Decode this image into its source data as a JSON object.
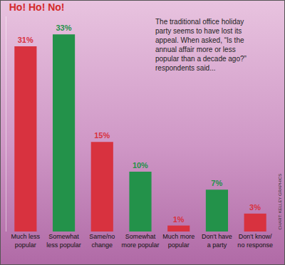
{
  "chart_data": {
    "type": "bar",
    "title": "Ho! Ho! No!",
    "subtitle": "The traditional office holiday party seems to have lost its appeal. When asked, “Is the annual affair more or less popular than a decade ago?” respondents said...",
    "annotations": [
      "CHART: KELLEY GRAPHICS"
    ],
    "categories": [
      "Much less popular",
      "Somewhat less popular",
      "Same/no change",
      "Somewhat more popular",
      "Much more popular",
      "Don't have a party",
      "Don't know/ no response"
    ],
    "values": [
      31,
      33,
      15,
      10,
      1,
      7,
      3
    ],
    "value_labels": [
      "31%",
      "33%",
      "15%",
      "10%",
      "1%",
      "7%",
      "3%"
    ],
    "colors": [
      "#d8323f",
      "#23924a",
      "#d8323f",
      "#23924a",
      "#d8323f",
      "#23924a",
      "#d8323f"
    ],
    "ylim": [
      0,
      36
    ],
    "grid": false,
    "data_labels": true,
    "tick_labels": "x"
  }
}
